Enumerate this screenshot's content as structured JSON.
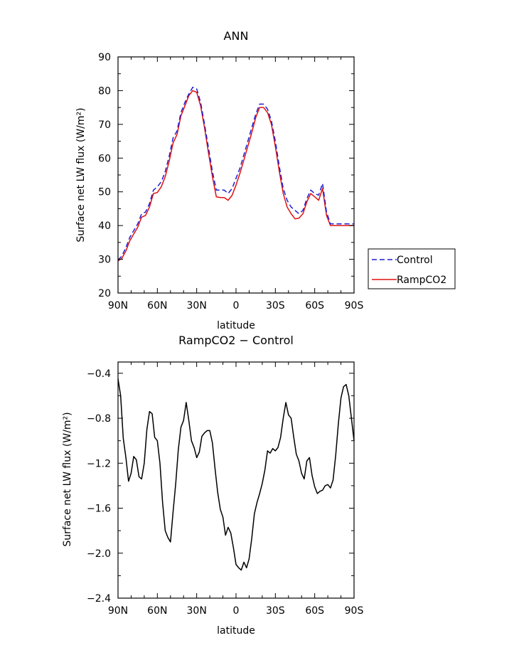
{
  "chart_data": [
    {
      "type": "line",
      "title": "ANN",
      "xlabel": "latitude",
      "ylabel": "Surface net LW flux (W/m²)",
      "xlim": [
        90,
        -90
      ],
      "ylim": [
        20,
        90
      ],
      "x_ticks": [
        {
          "value": 90,
          "label": "90N"
        },
        {
          "value": 60,
          "label": "60N"
        },
        {
          "value": 30,
          "label": "30N"
        },
        {
          "value": 0,
          "label": "0"
        },
        {
          "value": -30,
          "label": "30S"
        },
        {
          "value": -60,
          "label": "60S"
        },
        {
          "value": -90,
          "label": "90S"
        }
      ],
      "y_ticks": [
        20,
        30,
        40,
        50,
        60,
        70,
        80,
        90
      ],
      "x": [
        90,
        87,
        84,
        81,
        78,
        75,
        72,
        69,
        66,
        63,
        60,
        57,
        54,
        51,
        48,
        45,
        42,
        39,
        36,
        33,
        30,
        27,
        24,
        21,
        18,
        15,
        12,
        9,
        6,
        3,
        0,
        -3,
        -6,
        -9,
        -12,
        -15,
        -18,
        -21,
        -24,
        -27,
        -30,
        -33,
        -36,
        -39,
        -42,
        -45,
        -48,
        -51,
        -54,
        -57,
        -60,
        -63,
        -66,
        -69,
        -72,
        -75,
        -78,
        -81,
        -84,
        -87,
        -90
      ],
      "series": [
        {
          "name": "Control",
          "color": "#1f1fd6",
          "dash": "dashed",
          "values": [
            29.8,
            31.0,
            33.5,
            36.5,
            38.5,
            40.5,
            43.5,
            44.0,
            46.5,
            50.5,
            51.5,
            53.0,
            56.0,
            60.5,
            66.0,
            68.0,
            73.5,
            76.5,
            79.0,
            81.0,
            80.5,
            76.5,
            70.0,
            63.0,
            56.0,
            50.5,
            50.5,
            50.5,
            49.5,
            51.0,
            54.0,
            57.0,
            61.0,
            65.0,
            69.0,
            73.0,
            76.0,
            76.0,
            74.5,
            71.0,
            65.0,
            57.5,
            51.0,
            47.5,
            45.5,
            44.5,
            43.5,
            44.5,
            48.0,
            50.5,
            49.5,
            49.0,
            52.5,
            44.0,
            40.5,
            40.5,
            40.5,
            40.5,
            40.5,
            40.5,
            40.5
          ]
        },
        {
          "name": "RampCO2",
          "color": "#e01010",
          "dash": "solid",
          "values": [
            29.5,
            30.3,
            32.5,
            35.5,
            37.5,
            39.5,
            42.5,
            43.0,
            45.5,
            49.5,
            49.8,
            51.5,
            54.5,
            59.0,
            64.5,
            67.0,
            72.5,
            75.5,
            78.5,
            80.0,
            79.5,
            75.5,
            69.0,
            61.5,
            54.5,
            48.5,
            48.3,
            48.3,
            47.5,
            49.0,
            52.0,
            55.5,
            59.5,
            63.5,
            67.5,
            72.0,
            75.0,
            75.0,
            73.5,
            70.0,
            63.5,
            56.0,
            49.5,
            45.5,
            43.5,
            42.0,
            42.2,
            43.5,
            47.0,
            49.5,
            48.5,
            47.5,
            51.0,
            43.0,
            40.0,
            40.0,
            40.0,
            40.0,
            40.0,
            40.0,
            40.0
          ]
        }
      ],
      "legend": {
        "placement": "right",
        "entries": [
          "Control",
          "RampCO2"
        ]
      }
    },
    {
      "type": "line",
      "title": "RampCO2 − Control",
      "xlabel": "latitude",
      "ylabel": "Surface net LW flux (W/m²)",
      "xlim": [
        90,
        -90
      ],
      "ylim": [
        -2.4,
        -0.3
      ],
      "x_ticks": [
        {
          "value": 90,
          "label": "90N"
        },
        {
          "value": 60,
          "label": "60N"
        },
        {
          "value": 30,
          "label": "30N"
        },
        {
          "value": 0,
          "label": "0"
        },
        {
          "value": -30,
          "label": "30S"
        },
        {
          "value": -60,
          "label": "60S"
        },
        {
          "value": -90,
          "label": "90S"
        }
      ],
      "y_ticks": [
        -2.4,
        -2.0,
        -1.6,
        -1.2,
        -0.8,
        -0.4
      ],
      "y_tick_labels": [
        "−2.4",
        "−2.0",
        "−1.6",
        "−1.2",
        "−0.8",
        "−0.4"
      ],
      "x": [
        90,
        88,
        86,
        84,
        82,
        80,
        78,
        76,
        74,
        72,
        70,
        68,
        66,
        64,
        62,
        60,
        58,
        56,
        54,
        52,
        50,
        48,
        46,
        44,
        42,
        40,
        38,
        36,
        34,
        32,
        30,
        28,
        26,
        24,
        22,
        20,
        18,
        16,
        14,
        12,
        10,
        8,
        6,
        4,
        2,
        0,
        -2,
        -4,
        -6,
        -8,
        -10,
        -12,
        -14,
        -16,
        -18,
        -20,
        -22,
        -24,
        -26,
        -28,
        -30,
        -32,
        -34,
        -36,
        -38,
        -40,
        -42,
        -44,
        -46,
        -48,
        -50,
        -52,
        -54,
        -56,
        -58,
        -60,
        -62,
        -64,
        -66,
        -68,
        -70,
        -72,
        -74,
        -76,
        -78,
        -80,
        -82,
        -84,
        -86,
        -88,
        -90
      ],
      "series": [
        {
          "name": "",
          "color": "#000000",
          "dash": "solid",
          "values": [
            -0.45,
            -0.6,
            -0.98,
            -1.15,
            -1.36,
            -1.29,
            -1.14,
            -1.17,
            -1.32,
            -1.34,
            -1.2,
            -0.9,
            -0.74,
            -0.76,
            -0.97,
            -1.0,
            -1.2,
            -1.55,
            -1.8,
            -1.86,
            -1.9,
            -1.63,
            -1.38,
            -1.08,
            -0.88,
            -0.82,
            -0.66,
            -0.82,
            -1.0,
            -1.06,
            -1.15,
            -1.1,
            -0.96,
            -0.93,
            -0.91,
            -0.91,
            -1.02,
            -1.25,
            -1.46,
            -1.61,
            -1.68,
            -1.84,
            -1.77,
            -1.82,
            -1.95,
            -2.1,
            -2.13,
            -2.15,
            -2.08,
            -2.13,
            -2.05,
            -1.87,
            -1.65,
            -1.55,
            -1.47,
            -1.38,
            -1.26,
            -1.09,
            -1.11,
            -1.07,
            -1.09,
            -1.06,
            -0.97,
            -0.8,
            -0.66,
            -0.77,
            -0.8,
            -0.97,
            -1.12,
            -1.18,
            -1.29,
            -1.34,
            -1.18,
            -1.15,
            -1.31,
            -1.41,
            -1.47,
            -1.45,
            -1.44,
            -1.4,
            -1.39,
            -1.42,
            -1.35,
            -1.13,
            -0.85,
            -0.62,
            -0.52,
            -0.5,
            -0.6,
            -0.8,
            -1.0
          ]
        }
      ]
    }
  ]
}
